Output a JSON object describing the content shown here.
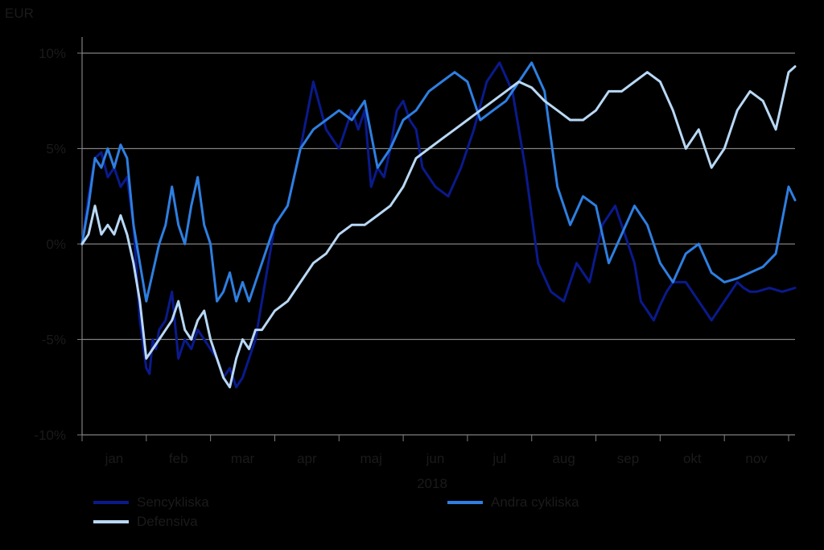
{
  "chart_data": {
    "type": "line",
    "unit_label": "EUR",
    "xlabel": "2018",
    "ylim": [
      -10,
      10
    ],
    "yticks": [
      10,
      5,
      0,
      -5,
      -10
    ],
    "ytick_labels": [
      "10%",
      "5%",
      "0%",
      "-5%",
      "-10%"
    ],
    "months": [
      "jan",
      "feb",
      "mar",
      "apr",
      "maj",
      "jun",
      "jul",
      "aug",
      "sep",
      "okt",
      "nov"
    ],
    "x_range_months": [
      0,
      11.1
    ],
    "grid": "horizontal",
    "legend_position": "bottom",
    "series": [
      {
        "name": "Sencykliska",
        "color": "#0a1a8c",
        "x": [
          0,
          0.1,
          0.2,
          0.3,
          0.4,
          0.5,
          0.6,
          0.7,
          0.8,
          0.9,
          1.0,
          1.05,
          1.1,
          1.15,
          1.2,
          1.3,
          1.4,
          1.5,
          1.6,
          1.7,
          1.8,
          1.9,
          2.0,
          2.1,
          2.2,
          2.3,
          2.4,
          2.5,
          2.6,
          2.7,
          2.8,
          2.9,
          3.0,
          3.2,
          3.4,
          3.6,
          3.8,
          4.0,
          4.1,
          4.2,
          4.3,
          4.4,
          4.5,
          4.6,
          4.7,
          4.8,
          4.9,
          5.0,
          5.1,
          5.2,
          5.3,
          5.5,
          5.7,
          5.9,
          6.1,
          6.3,
          6.5,
          6.7,
          6.9,
          7.1,
          7.3,
          7.5,
          7.7,
          7.9,
          8.1,
          8.3,
          8.4,
          8.5,
          8.6,
          8.7,
          8.8,
          8.9,
          9.0,
          9.1,
          9.2,
          9.3,
          9.4,
          9.5,
          9.6,
          9.7,
          9.8,
          9.9,
          10.0,
          10.1,
          10.2,
          10.3,
          10.4,
          10.5,
          10.6,
          10.7,
          10.8,
          10.9,
          11.0,
          11.1
        ],
        "values": [
          0,
          2.5,
          4.5,
          4.8,
          3.5,
          4,
          3,
          3.5,
          1,
          -4,
          -6.5,
          -6.8,
          -5,
          -5.5,
          -4.5,
          -4,
          -2.5,
          -6,
          -5,
          -5.5,
          -4.5,
          -5,
          -5.5,
          -6,
          -7,
          -6.5,
          -7.5,
          -7,
          -6,
          -5,
          -3,
          -1,
          1,
          2,
          5,
          8.5,
          6,
          5,
          6,
          7,
          6,
          7,
          3,
          4,
          3.5,
          5,
          7,
          7.5,
          6.5,
          6,
          4,
          3,
          2.5,
          4,
          6,
          8.5,
          9.5,
          8,
          4,
          -1,
          -2.5,
          -3,
          -1,
          -2,
          1,
          2,
          1,
          0,
          -1,
          -3,
          -3.5,
          -4,
          -3.2,
          -2.5,
          -2,
          -2,
          -2,
          -2.5,
          -3,
          -3.5,
          -4,
          -3.5,
          -3,
          -2.5,
          -2,
          -2.3,
          -2.5,
          -2.5,
          -2.4,
          -2.3,
          -2.4,
          -2.5,
          -2.4,
          -2.3
        ]
      },
      {
        "name": "Andra cykliska",
        "color": "#2e7fe0",
        "x": [
          0,
          0.1,
          0.2,
          0.3,
          0.4,
          0.5,
          0.6,
          0.7,
          0.8,
          0.9,
          1.0,
          1.1,
          1.2,
          1.3,
          1.4,
          1.5,
          1.6,
          1.7,
          1.8,
          1.9,
          2.0,
          2.1,
          2.2,
          2.3,
          2.4,
          2.5,
          2.6,
          2.7,
          2.8,
          2.9,
          3.0,
          3.2,
          3.4,
          3.6,
          3.8,
          4.0,
          4.2,
          4.4,
          4.6,
          4.8,
          5.0,
          5.2,
          5.4,
          5.6,
          5.8,
          6.0,
          6.2,
          6.4,
          6.6,
          6.8,
          7.0,
          7.2,
          7.4,
          7.6,
          7.8,
          8.0,
          8.2,
          8.4,
          8.6,
          8.8,
          9.0,
          9.2,
          9.4,
          9.6,
          9.8,
          10.0,
          10.2,
          10.4,
          10.6,
          10.8,
          11.0,
          11.1
        ],
        "values": [
          0,
          2,
          4.5,
          4,
          5,
          4,
          5.2,
          4.5,
          1,
          -1,
          -3,
          -1.5,
          0,
          1,
          3,
          1,
          0,
          2,
          3.5,
          1,
          0,
          -3,
          -2.5,
          -1.5,
          -3,
          -2,
          -3,
          -2,
          -1,
          0,
          1,
          2,
          5,
          6,
          6.5,
          7,
          6.5,
          7.5,
          4,
          5,
          6.5,
          7,
          8,
          8.5,
          9,
          8.5,
          6.5,
          7,
          7.5,
          8.5,
          9.5,
          8,
          3,
          1,
          2.5,
          2,
          -1,
          0.5,
          2,
          1,
          -1,
          -2,
          -0.5,
          0,
          -1.5,
          -2,
          -1.8,
          -1.5,
          -1.2,
          -0.5,
          3,
          2.3
        ]
      },
      {
        "name": "Defensiva",
        "color": "#b8d8f5",
        "x": [
          0,
          0.1,
          0.2,
          0.3,
          0.4,
          0.5,
          0.6,
          0.7,
          0.8,
          0.9,
          1.0,
          1.1,
          1.2,
          1.3,
          1.4,
          1.5,
          1.6,
          1.7,
          1.8,
          1.9,
          2.0,
          2.1,
          2.2,
          2.3,
          2.4,
          2.5,
          2.6,
          2.7,
          2.8,
          2.9,
          3.0,
          3.2,
          3.4,
          3.6,
          3.8,
          4.0,
          4.2,
          4.4,
          4.6,
          4.8,
          5.0,
          5.2,
          5.4,
          5.6,
          5.8,
          6.0,
          6.2,
          6.4,
          6.6,
          6.8,
          7.0,
          7.2,
          7.4,
          7.6,
          7.8,
          8.0,
          8.2,
          8.4,
          8.6,
          8.8,
          9.0,
          9.2,
          9.4,
          9.6,
          9.8,
          10.0,
          10.2,
          10.4,
          10.6,
          10.8,
          11.0,
          11.1
        ],
        "values": [
          0,
          0.5,
          2,
          0.5,
          1,
          0.5,
          1.5,
          0.5,
          -1,
          -3,
          -6,
          -5.5,
          -5,
          -4.5,
          -4,
          -3,
          -4.5,
          -5,
          -4,
          -3.5,
          -5,
          -6,
          -7,
          -7.5,
          -6,
          -5,
          -5.5,
          -4.5,
          -4.5,
          -4,
          -3.5,
          -3,
          -2,
          -1,
          -0.5,
          0.5,
          1,
          1,
          1.5,
          2,
          3,
          4.5,
          5,
          5.5,
          6,
          6.5,
          7,
          7.5,
          8,
          8.5,
          8.2,
          7.5,
          7,
          6.5,
          6.5,
          7,
          8,
          8,
          8.5,
          9,
          8.5,
          7,
          5,
          6,
          4,
          5,
          7,
          8,
          7.5,
          6,
          9,
          9.3
        ]
      }
    ]
  }
}
